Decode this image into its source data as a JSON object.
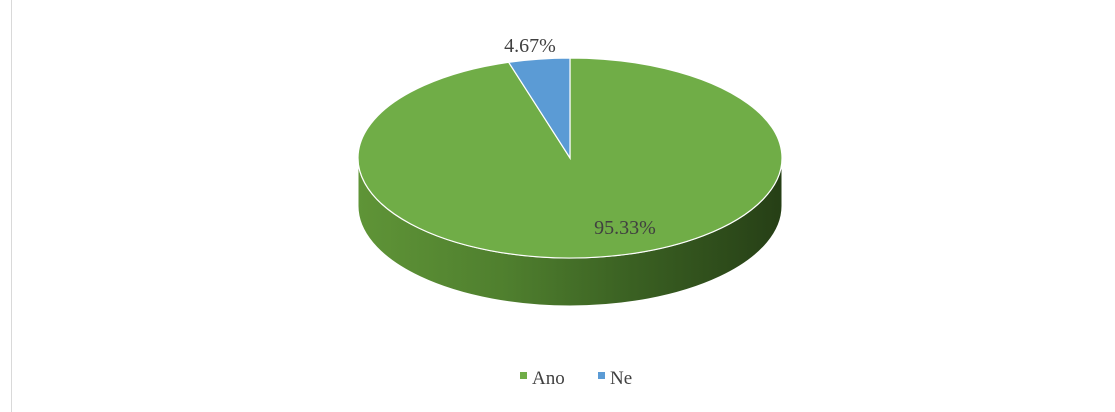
{
  "chart_data": {
    "type": "pie",
    "title": "",
    "style": "3d",
    "categories": [
      "Ano",
      "Ne"
    ],
    "values": [
      95.33,
      4.67
    ],
    "labels": [
      "95.33%",
      "4.67%"
    ],
    "colors": [
      "#70ad47",
      "#5b9bd5"
    ],
    "legend": {
      "position": "bottom",
      "entries": [
        "Ano",
        "Ne"
      ]
    }
  }
}
